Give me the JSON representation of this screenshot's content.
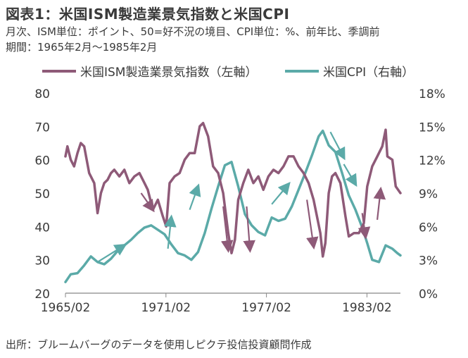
{
  "title": "図表1：米国ISM製造業景気指数と米国CPI",
  "subtitle_line1": "月次、ISM単位：ポイント、50=好不況の境目、CPI単位：%、前年比、季調前",
  "subtitle_line2": "期間：1965年2月～1985年2月",
  "source": "出所：ブルームバーグのデータを使用しピクテ投信投資顧問作成",
  "colors": {
    "ism": "#8E5A78",
    "cpi": "#5BAAA8",
    "text": "#3a3a3a",
    "axis": "#888888"
  },
  "chart_data": {
    "type": "line",
    "legend_position": "top",
    "grid": false,
    "x_tick_labels": [
      "1965/02",
      "1971/02",
      "1977/02",
      "1983/02"
    ],
    "x_tick_years": [
      1965.083,
      1971.083,
      1977.083,
      1983.083
    ],
    "xlim": [
      1965.083,
      1985.083
    ],
    "left_axis": {
      "ylim": [
        20,
        80
      ],
      "ticks": [
        20,
        30,
        40,
        50,
        60,
        70,
        80
      ]
    },
    "right_axis": {
      "ylim": [
        0,
        18
      ],
      "ticks": [
        "0%",
        "3%",
        "6%",
        "9%",
        "12%",
        "15%",
        "18%"
      ],
      "tick_values": [
        0,
        3,
        6,
        9,
        12,
        15,
        18
      ]
    },
    "series": [
      {
        "name": "米国ISM製造業景気指数（左軸）",
        "axis": "left",
        "x": [
          1965.083,
          1965.2,
          1965.4,
          1965.6,
          1965.8,
          1966.0,
          1966.2,
          1966.5,
          1966.8,
          1967.0,
          1967.2,
          1967.4,
          1967.6,
          1967.8,
          1968.0,
          1968.3,
          1968.6,
          1968.9,
          1969.2,
          1969.5,
          1969.8,
          1970.0,
          1970.3,
          1970.6,
          1970.9,
          1971.1,
          1971.3,
          1971.6,
          1971.9,
          1972.2,
          1972.5,
          1972.8,
          1973.1,
          1973.3,
          1973.6,
          1973.9,
          1974.2,
          1974.5,
          1974.8,
          1975.0,
          1975.2,
          1975.4,
          1975.7,
          1976.0,
          1976.3,
          1976.6,
          1976.9,
          1977.2,
          1977.5,
          1977.8,
          1978.1,
          1978.4,
          1978.7,
          1979.0,
          1979.3,
          1979.6,
          1979.9,
          1980.1,
          1980.3,
          1980.45,
          1980.6,
          1980.8,
          1981.0,
          1981.2,
          1981.5,
          1981.8,
          1982.0,
          1982.3,
          1982.6,
          1982.9,
          1983.1,
          1983.4,
          1983.7,
          1984.0,
          1984.2,
          1984.3,
          1984.6,
          1984.8,
          1985.083
        ],
        "values": [
          61,
          64,
          60,
          58,
          62,
          65,
          64,
          56,
          53,
          44,
          50,
          53,
          54,
          56,
          57,
          55,
          57,
          53,
          55,
          56,
          53,
          51,
          45,
          48,
          43,
          40,
          53,
          55,
          56,
          60,
          62,
          62,
          70,
          71,
          67,
          58,
          56,
          50,
          38,
          32,
          36,
          48,
          53,
          57,
          53,
          55,
          51,
          55,
          57,
          56,
          58,
          61,
          61,
          58,
          56,
          53,
          48,
          43,
          38,
          31,
          35,
          50,
          55,
          56,
          53,
          43,
          37,
          38,
          38,
          41,
          52,
          58,
          61,
          64,
          69,
          61,
          60,
          52,
          50
        ]
      },
      {
        "name": "米国CPI（右軸）",
        "axis": "right",
        "x": [
          1965.083,
          1965.4,
          1965.8,
          1966.2,
          1966.6,
          1967.0,
          1967.4,
          1967.8,
          1968.2,
          1968.6,
          1969.0,
          1969.4,
          1969.8,
          1970.2,
          1970.6,
          1971.0,
          1971.4,
          1971.8,
          1972.2,
          1972.6,
          1973.0,
          1973.4,
          1973.8,
          1974.2,
          1974.6,
          1975.0,
          1975.4,
          1975.8,
          1976.2,
          1976.6,
          1977.0,
          1977.4,
          1977.8,
          1978.2,
          1978.6,
          1979.0,
          1979.4,
          1979.8,
          1980.2,
          1980.45,
          1980.8,
          1981.2,
          1981.6,
          1982.0,
          1982.4,
          1982.8,
          1983.1,
          1983.4,
          1983.8,
          1984.2,
          1984.6,
          1984.9,
          1985.083
        ],
        "values": [
          1.0,
          1.7,
          1.8,
          2.5,
          3.3,
          2.8,
          2.6,
          3.1,
          3.8,
          4.3,
          4.8,
          5.4,
          5.9,
          6.1,
          5.7,
          5.3,
          4.4,
          3.6,
          3.4,
          3.0,
          3.7,
          5.4,
          7.6,
          9.6,
          11.5,
          11.8,
          9.6,
          7.1,
          6.1,
          5.5,
          5.2,
          6.8,
          6.5,
          6.7,
          7.8,
          9.3,
          10.8,
          12.4,
          14.1,
          14.6,
          13.3,
          12.7,
          10.8,
          8.8,
          7.5,
          5.9,
          4.5,
          3.0,
          2.8,
          4.3,
          4.0,
          3.6,
          3.4
        ]
      }
    ],
    "annotation_arrows": 12
  }
}
